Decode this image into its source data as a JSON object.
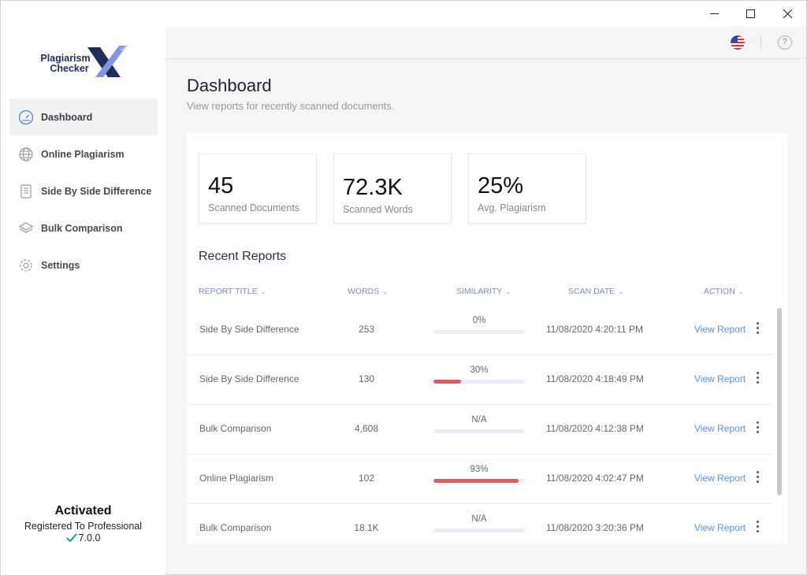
{
  "window": {
    "controls": [
      "minimize",
      "maximize",
      "close"
    ]
  },
  "logo": {
    "line1": "Plagiarism",
    "line2": "Checker",
    "mark": "X"
  },
  "sidebar": {
    "items": [
      {
        "label": "Dashboard",
        "icon": "gauge-icon",
        "active": true
      },
      {
        "label": "Online Plagiarism",
        "icon": "globe-icon",
        "active": false
      },
      {
        "label": "Side By Side Difference",
        "icon": "document-icon",
        "active": false
      },
      {
        "label": "Bulk Comparison",
        "icon": "layers-icon",
        "active": false
      },
      {
        "label": "Settings",
        "icon": "gear-icon",
        "active": false
      }
    ]
  },
  "activation": {
    "title": "Activated",
    "registered": "Registered To Professional",
    "version": "7.0.0"
  },
  "header": {
    "title": "Dashboard",
    "subtitle": "View reports for recently scanned documents."
  },
  "stats": [
    {
      "value": "45",
      "label": "Scanned Documents"
    },
    {
      "value": "72.3K",
      "label": "Scanned Words"
    },
    {
      "value": "25%",
      "label": "Avg. Plagiarism"
    }
  ],
  "recent": {
    "title": "Recent Reports",
    "columns": {
      "title": "REPORT TITLE",
      "words": "WORDS",
      "similarity": "SIMILARITY",
      "date": "SCAN DATE",
      "action": "ACTION"
    },
    "rows": [
      {
        "title": "Side By Side Difference",
        "words": "253",
        "similarity": "0%",
        "fill": 0,
        "date": "11/08/2020 4:20:11 PM",
        "action": "View Report"
      },
      {
        "title": "Side By Side Difference",
        "words": "130",
        "similarity": "30%",
        "fill": 30,
        "date": "11/08/2020 4:18:49 PM",
        "action": "View Report"
      },
      {
        "title": "Bulk Comparison",
        "words": "4,608",
        "similarity": "N/A",
        "fill": 0,
        "date": "11/08/2020 4:12:38 PM",
        "action": "View Report"
      },
      {
        "title": "Online Plagiarism",
        "words": "102",
        "similarity": "93%",
        "fill": 93,
        "date": "11/08/2020 4:02:47 PM",
        "action": "View Report"
      },
      {
        "title": "Bulk Comparison",
        "words": "18.1K",
        "similarity": "N/A",
        "fill": 0,
        "date": "11/08/2020 3:20:36 PM",
        "action": "View Report"
      }
    ]
  },
  "colors": {
    "accent": "#5b8fe6",
    "bar_fill": "#e35b5b",
    "bar_track": "#e9eef8",
    "check": "#1fae8a"
  }
}
